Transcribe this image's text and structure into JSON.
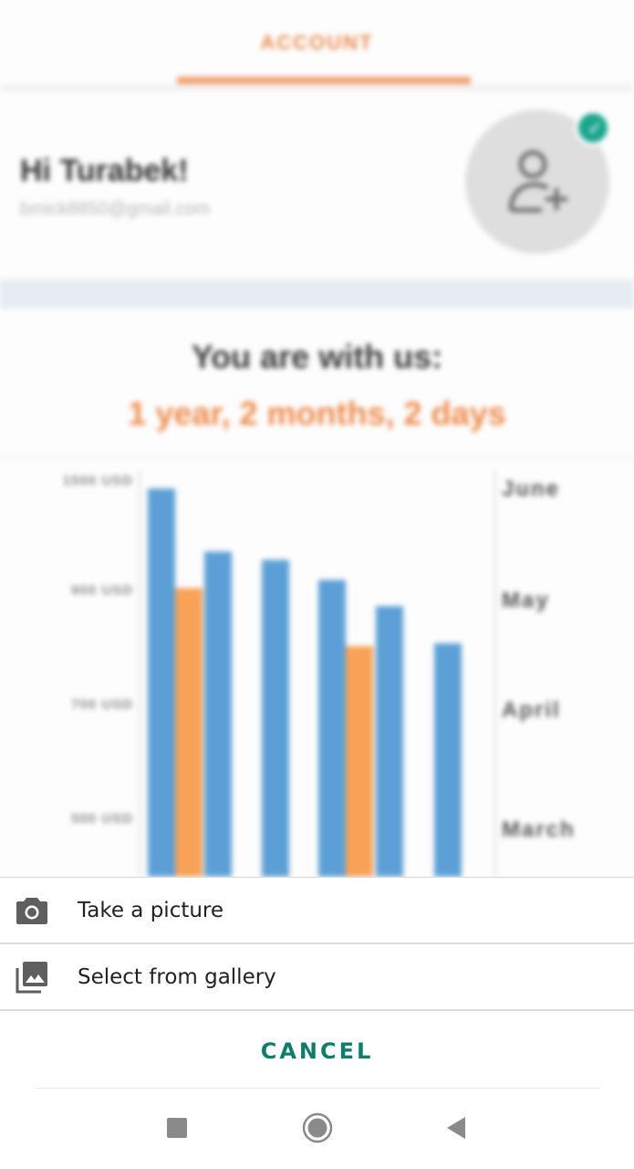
{
  "background": {
    "tab": {
      "label": "ACCOUNT"
    },
    "profile": {
      "greeting": "Hi Turabek!",
      "email": "bmick8850@gmail.com",
      "avatar_icon": "add-person-icon",
      "edit_icon": "check-icon"
    },
    "membership": {
      "heading": "You are with us:",
      "duration": "1 year, 2 months, 2 days"
    }
  },
  "chart_data": {
    "type": "bar",
    "y_tick_labels": [
      "1500 USD",
      "900 USD",
      "700 USD",
      "500 USD"
    ],
    "month_labels": [
      "June",
      "May",
      "April",
      "March"
    ],
    "series": [
      {
        "color": "#5c9fd6",
        "values": [
          1450,
          1105,
          1060,
          950,
          870,
          805
        ]
      },
      {
        "color": "#f7a257",
        "values": [
          905,
          null,
          null,
          800,
          null,
          null
        ]
      }
    ]
  },
  "sheet": {
    "options": [
      {
        "label": "Take a picture",
        "icon": "camera-icon"
      },
      {
        "label": "Select from gallery",
        "icon": "gallery-icon"
      }
    ],
    "cancel_label": "CANCEL"
  },
  "colors": {
    "accent": "#ee8a4b",
    "cancel": "#0f7d6a",
    "badge": "#1ca58e"
  }
}
